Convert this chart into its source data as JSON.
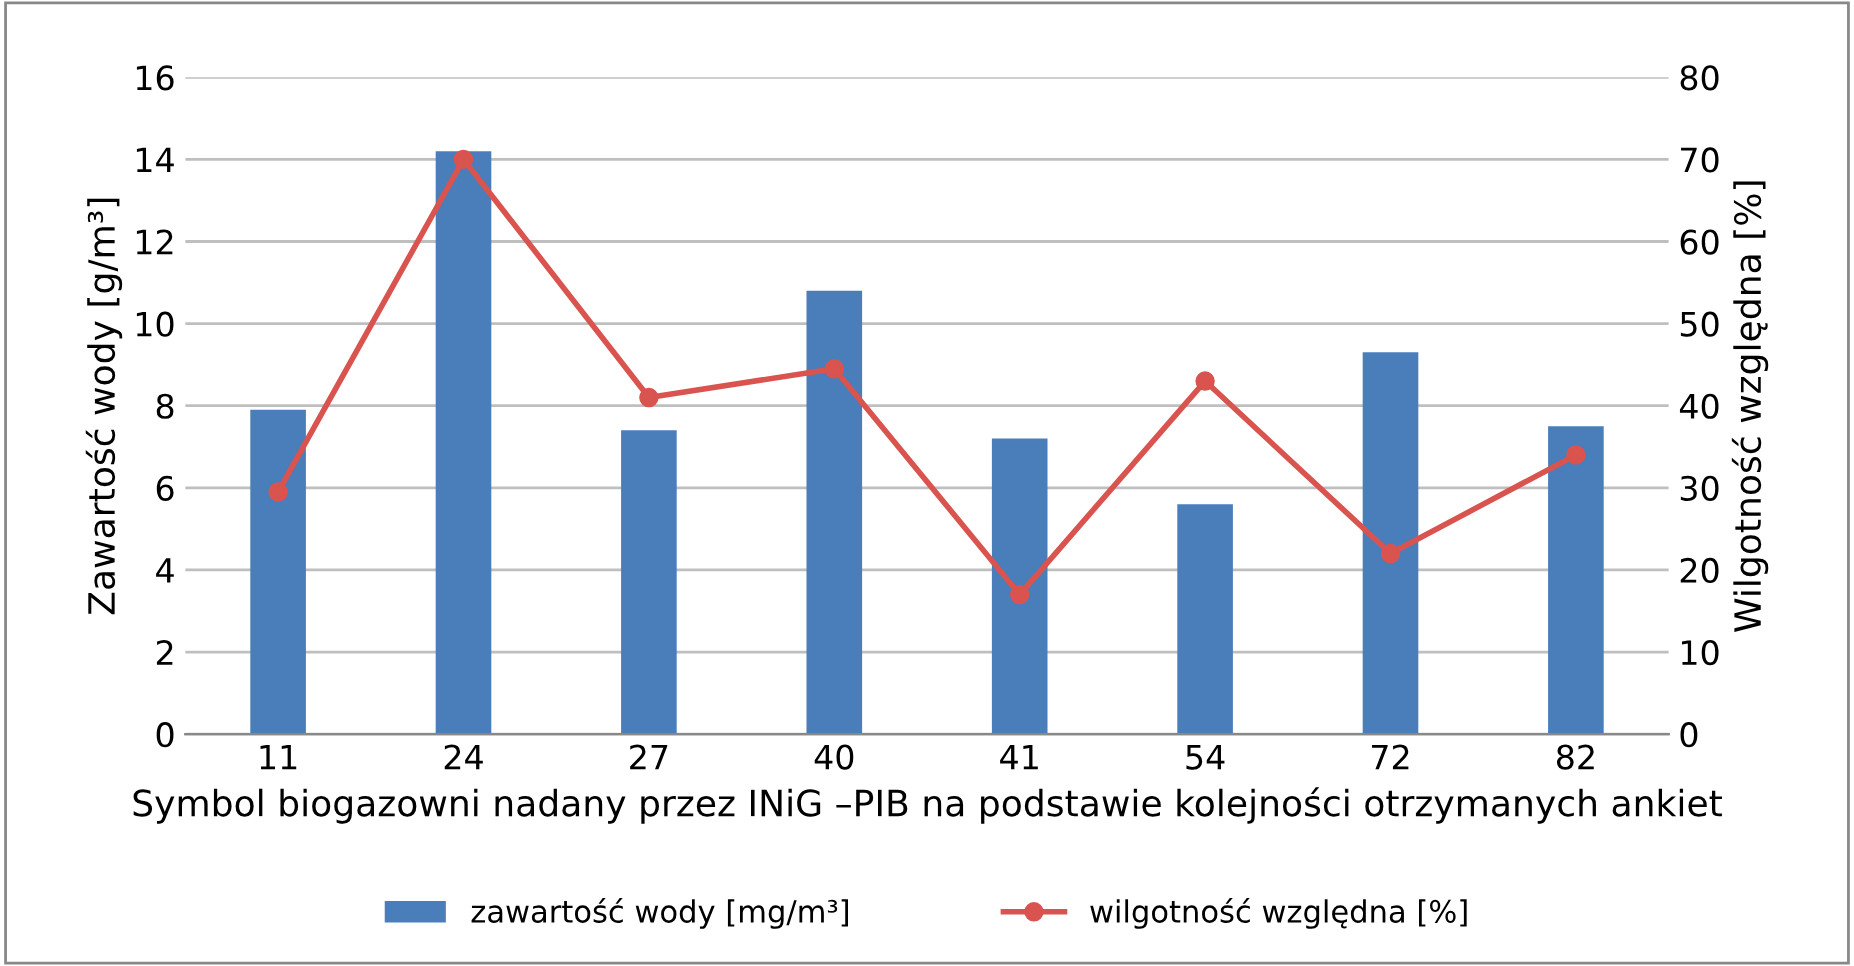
{
  "chart_data": {
    "type": "bar",
    "categories": [
      "11",
      "24",
      "27",
      "40",
      "41",
      "54",
      "72",
      "82"
    ],
    "xlabel": "Symbol biogazowni nadany przez INiG –PIB na podstawie kolejności otrzymanych ankiet",
    "ylabel": "Zawartość wody [g/m³]",
    "y2label": "Wilgotność względna [%]",
    "series": [
      {
        "name": "zawartość wody [mg/m³]",
        "color": "#4a7ebb",
        "values": [
          7.9,
          14.2,
          7.4,
          10.8,
          7.2,
          5.6,
          9.3,
          7.5
        ]
      },
      {
        "name": "wilgotność względna [%]",
        "type": "line",
        "axis": "y2",
        "color": "#d9534f",
        "marker": "circle",
        "values": [
          29.5,
          70,
          41,
          44.5,
          17,
          43,
          22,
          34
        ]
      }
    ],
    "ylim": [
      0,
      16
    ],
    "yticks": [
      0,
      2,
      4,
      6,
      8,
      10,
      12,
      14,
      16
    ],
    "y2lim": [
      0,
      80
    ],
    "y2ticks": [
      0,
      10,
      20,
      30,
      40,
      50,
      60,
      70,
      80
    ],
    "grid": "y",
    "legend": "bottom"
  }
}
